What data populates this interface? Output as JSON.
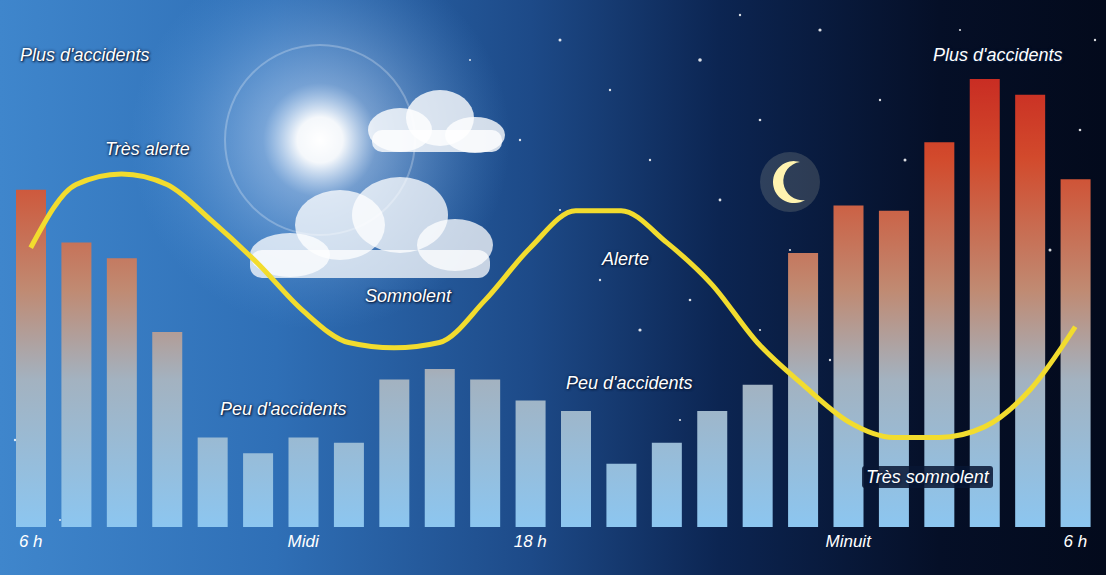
{
  "chart_data": {
    "type": "bar",
    "categories": [
      "6 h",
      null,
      null,
      null,
      null,
      null,
      "Midi",
      null,
      null,
      null,
      null,
      "18 h",
      null,
      null,
      null,
      null,
      null,
      null,
      "Minuit",
      null,
      null,
      null,
      null,
      "6 h"
    ],
    "series": [
      {
        "type": "bar",
        "color": "#c0101a",
        "values": [
          64,
          54,
          51,
          37,
          17,
          14,
          17,
          16,
          28,
          30,
          28,
          24,
          22,
          12,
          16,
          22,
          27,
          52,
          61,
          60,
          73,
          85,
          82,
          66
        ]
      },
      {
        "type": "line",
        "color": "#f2dc2e",
        "values": [
          53,
          65,
          67,
          65,
          58,
          50,
          41,
          35,
          34,
          35,
          43,
          53,
          60,
          60,
          54,
          46,
          35,
          27,
          20,
          17,
          17,
          19,
          26,
          38
        ]
      }
    ],
    "ylim": [
      0,
      100
    ],
    "yticks": [],
    "tick_labels": "x",
    "grid": false,
    "annotations": [
      "Plus d'accidents",
      "Très alerte",
      "Somnolent",
      "Alerte",
      "Peu d'accidents",
      "Peu d'accidents",
      "Très somnolent",
      "Plus d'accidents"
    ]
  }
}
